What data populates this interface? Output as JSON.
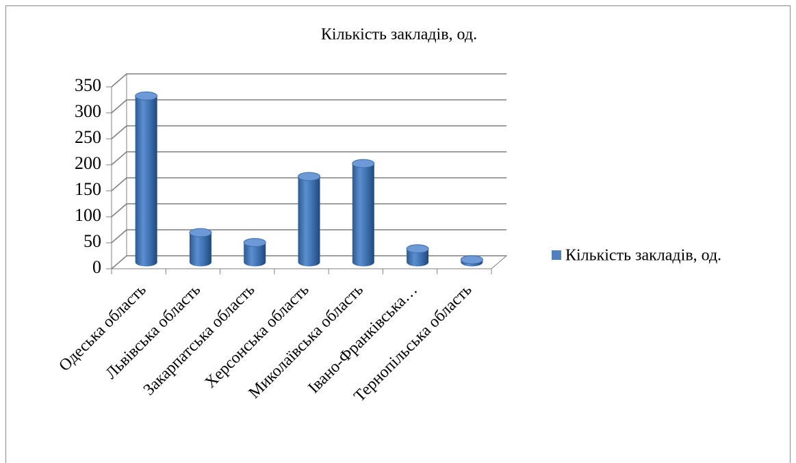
{
  "chart_data": {
    "type": "bar",
    "title": "Кількість закладів, од.",
    "categories": [
      "Одеська область",
      "Львівська область",
      "Закарпатська область",
      "Херсонська область",
      "Миколаївська область",
      "Івано-Франківська…",
      "Тернопільська область"
    ],
    "series": [
      {
        "name": "Кількість закладів, од.",
        "color": "#4f81bd",
        "values": [
          320,
          57,
          38,
          165,
          190,
          26,
          5
        ]
      }
    ],
    "ylim": [
      0,
      350
    ],
    "yticks": [
      0,
      50,
      100,
      150,
      200,
      250,
      300,
      350
    ],
    "grid": true,
    "legend": "right"
  }
}
